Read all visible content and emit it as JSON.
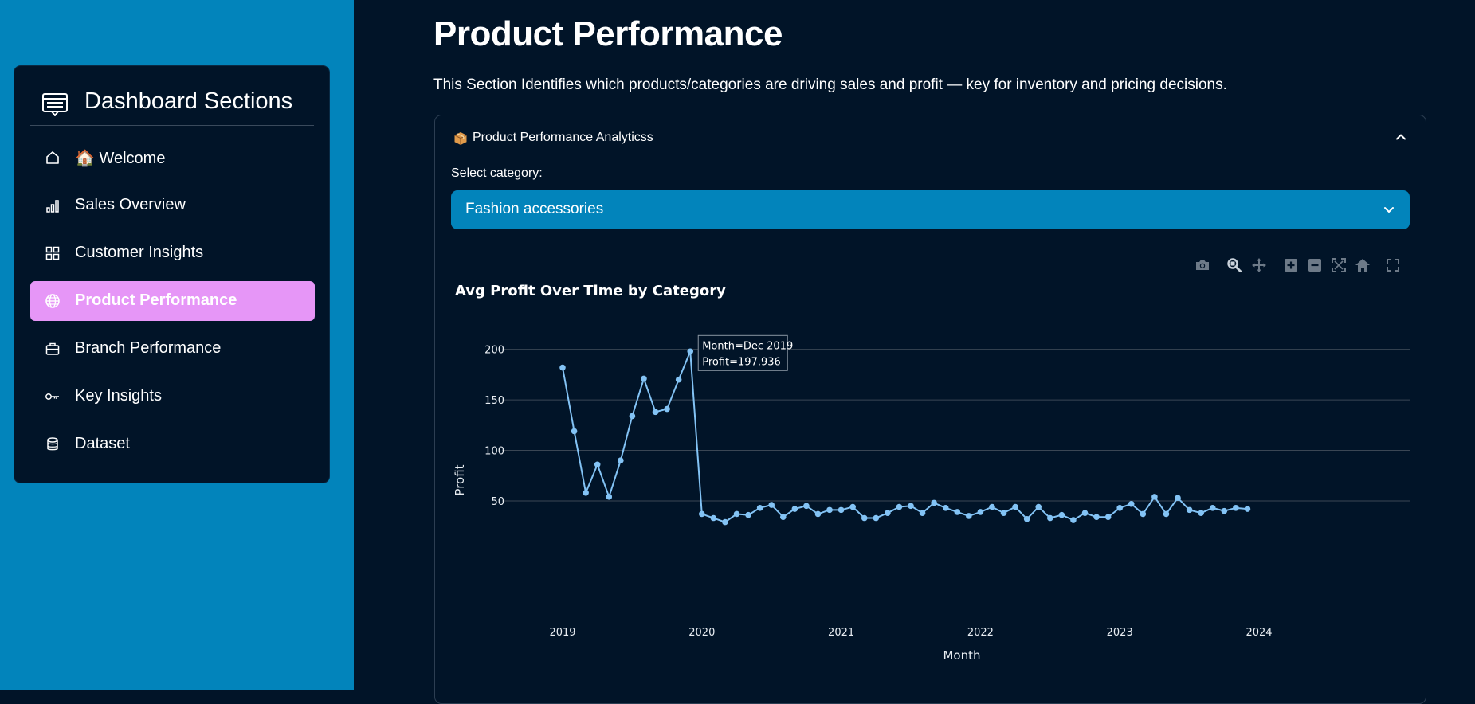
{
  "sidebar": {
    "title": "Dashboard Sections",
    "header_icon": "list-window-icon",
    "items": [
      {
        "label": "🏠 Welcome",
        "icon": "house-icon",
        "active": false
      },
      {
        "label": "Sales Overview",
        "icon": "bar-chart-icon",
        "active": false
      },
      {
        "label": "Customer Insights",
        "icon": "grid-icon",
        "active": false
      },
      {
        "label": "Product Performance",
        "icon": "globe-icon",
        "active": true
      },
      {
        "label": "Branch Performance",
        "icon": "briefcase-icon",
        "active": false
      },
      {
        "label": "Key Insights",
        "icon": "key-icon",
        "active": false
      },
      {
        "label": "Dataset",
        "icon": "database-icon",
        "active": false
      }
    ]
  },
  "main": {
    "title": "Product Performance",
    "description": "This Section Identifies which products/categories are driving sales and profit — key for inventory and pricing decisions.",
    "expander": {
      "icon": "package-icon",
      "title": "Product Performance Analyticss",
      "expanded": true
    },
    "select": {
      "label": "Select category:",
      "value": "Fashion accessories"
    }
  },
  "modebar": [
    "camera-icon",
    "zoom-icon",
    "pan-icon",
    "zoom-in-icon",
    "zoom-out-icon",
    "autoscale-icon",
    "reset-axes-icon",
    "fullscreen-icon"
  ],
  "colors": {
    "sidebar_bg": "#0284bb",
    "page_bg": "#011428",
    "active_item": "#e696f7",
    "line": "#83c3f5",
    "grid": "#3a4654"
  },
  "chart_data": {
    "type": "line",
    "title": "Avg Profit Over Time by Category",
    "xlabel": "Month",
    "ylabel": "Profit",
    "x_ticks": [
      "2019",
      "2020",
      "2021",
      "2022",
      "2023",
      "2024"
    ],
    "y_ticks": [
      50,
      100,
      150,
      200
    ],
    "xlim": [
      "2019-01",
      "2024-01"
    ],
    "ylim": [
      20,
      210
    ],
    "grid": true,
    "series": [
      {
        "x": [
          "2019-01",
          "2019-02",
          "2019-03",
          "2019-04",
          "2019-05",
          "2019-06",
          "2019-07",
          "2019-08",
          "2019-09",
          "2019-10",
          "2019-11",
          "2019-12",
          "2020-01",
          "2020-02",
          "2020-03",
          "2020-04",
          "2020-05",
          "2020-06",
          "2020-07",
          "2020-08",
          "2020-09",
          "2020-10",
          "2020-11",
          "2020-12",
          "2021-01",
          "2021-02",
          "2021-03",
          "2021-04",
          "2021-05",
          "2021-06",
          "2021-07",
          "2021-08",
          "2021-09",
          "2021-10",
          "2021-11",
          "2021-12",
          "2022-01",
          "2022-02",
          "2022-03",
          "2022-04",
          "2022-05",
          "2022-06",
          "2022-07",
          "2022-08",
          "2022-09",
          "2022-10",
          "2022-11",
          "2022-12",
          "2023-01",
          "2023-02",
          "2023-03",
          "2023-04",
          "2023-05",
          "2023-06",
          "2023-07",
          "2023-08",
          "2023-09",
          "2023-10",
          "2023-11",
          "2023-12"
        ],
        "values": [
          182,
          119,
          58,
          86,
          54,
          90,
          134,
          171,
          138,
          141,
          170,
          197.936,
          37,
          33,
          29,
          37,
          36,
          43,
          46,
          34,
          42,
          45,
          37,
          41,
          41,
          44,
          33,
          33,
          38,
          44,
          45,
          38,
          48,
          43,
          39,
          35,
          39,
          44,
          38,
          44,
          32,
          44,
          33,
          36,
          31,
          38,
          34,
          34,
          43,
          47,
          37,
          54,
          37,
          53,
          41,
          38,
          43,
          40,
          43,
          42
        ]
      }
    ],
    "tooltip": {
      "lines": [
        "Month=Dec 2019",
        "Profit=197.936"
      ],
      "point_index": 11
    }
  }
}
